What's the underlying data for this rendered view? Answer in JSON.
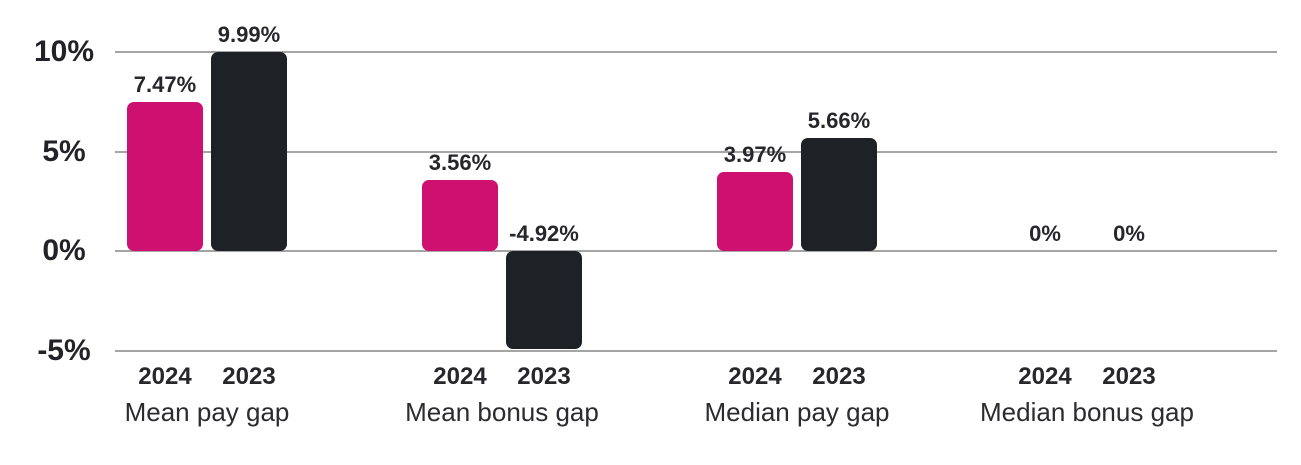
{
  "chart_data": {
    "type": "bar",
    "title": "",
    "xlabel": "",
    "ylabel": "",
    "categories": [
      "Mean pay gap",
      "Mean bonus gap",
      "Median pay gap",
      "Median bonus gap"
    ],
    "series": [
      {
        "name": "2024",
        "color": "#ce1170",
        "values": [
          7.47,
          3.56,
          3.97,
          0
        ],
        "labels": [
          "7.47%",
          "3.56%",
          "3.97%",
          "0%"
        ]
      },
      {
        "name": "2023",
        "color": "#1e2126",
        "values": [
          9.99,
          -4.92,
          5.66,
          0
        ],
        "labels": [
          "9.99%",
          "-4.92%",
          "5.66%",
          "0%"
        ]
      }
    ],
    "y_axis": {
      "ticks": [
        {
          "value": 10,
          "label": "10%"
        },
        {
          "value": 5,
          "label": "5%"
        },
        {
          "value": 0,
          "label": "0%"
        },
        {
          "value": -5,
          "label": "-5%"
        }
      ],
      "range": [
        -5.8,
        10.9
      ]
    },
    "grid": true,
    "legend_position": "none"
  },
  "style_colors": {
    "bar_2024": "#ce1170",
    "bar_2023": "#1e2126",
    "gridline": "#a5a5a5",
    "text": "#26262b",
    "background": "#ffffff"
  }
}
